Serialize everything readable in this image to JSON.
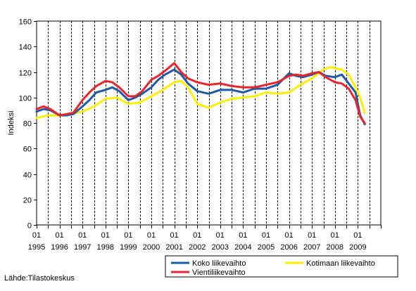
{
  "source": "Lähde:Tilastokeskus",
  "chart_data": {
    "type": "line",
    "title": "",
    "xlabel": "",
    "ylabel": "Indeksi",
    "ylim": [
      0,
      160
    ],
    "yticks": [
      0,
      20,
      40,
      60,
      80,
      100,
      120,
      140,
      160
    ],
    "xlim": [
      1995.0,
      2010.0
    ],
    "xticks": [
      {
        "month": "01",
        "year": "1995",
        "x": 1995
      },
      {
        "month": "01",
        "year": "1996",
        "x": 1996
      },
      {
        "month": "01",
        "year": "1997",
        "x": 1997
      },
      {
        "month": "01",
        "year": "1998",
        "x": 1998
      },
      {
        "month": "01",
        "year": "1999",
        "x": 1999
      },
      {
        "month": "01",
        "year": "2000",
        "x": 2000
      },
      {
        "month": "01",
        "year": "2001",
        "x": 2001
      },
      {
        "month": "01",
        "year": "2002",
        "x": 2002
      },
      {
        "month": "01",
        "year": "2003",
        "x": 2003
      },
      {
        "month": "01",
        "year": "2004",
        "x": 2004
      },
      {
        "month": "01",
        "year": "2005",
        "x": 2005
      },
      {
        "month": "01",
        "year": "2006",
        "x": 2006
      },
      {
        "month": "01",
        "year": "2007",
        "x": 2007
      },
      {
        "month": "01",
        "year": "2008",
        "x": 2008
      },
      {
        "month": "01",
        "year": "2009",
        "x": 2009
      }
    ],
    "grid": {
      "vertical": "dashed",
      "horizontal": false
    },
    "legend_position": "bottom",
    "series": [
      {
        "name": "Kotimaan liikevaihto",
        "color": "#ffee00",
        "x": [
          1995.0,
          1995.5,
          1996.0,
          1996.5,
          1997.0,
          1997.5,
          1998.0,
          1998.5,
          1999.0,
          1999.5,
          2000.0,
          2000.5,
          2001.0,
          2001.3,
          2001.6,
          2002.0,
          2002.5,
          2003.0,
          2003.5,
          2004.0,
          2004.5,
          2005.0,
          2005.5,
          2006.0,
          2006.5,
          2007.0,
          2007.5,
          2007.8,
          2008.0,
          2008.3,
          2008.6,
          2008.9,
          2009.1,
          2009.3
        ],
        "y": [
          84,
          86,
          86,
          87,
          89,
          93,
          99,
          100,
          95,
          96,
          101,
          106,
          112,
          113,
          108,
          95,
          92,
          96,
          99,
          100,
          101,
          104,
          103,
          104,
          110,
          115,
          122,
          124,
          123,
          122,
          118,
          108,
          100,
          88
        ]
      },
      {
        "name": "Koko liikevaihto",
        "color": "#1f5aa6",
        "x": [
          1995.0,
          1995.3,
          1995.6,
          1996.0,
          1996.3,
          1996.6,
          1997.0,
          1997.3,
          1997.6,
          1998.0,
          1998.3,
          1998.6,
          1999.0,
          1999.3,
          1999.6,
          2000.0,
          2000.3,
          2000.6,
          2001.0,
          2001.3,
          2001.6,
          2002.0,
          2002.5,
          2003.0,
          2003.5,
          2004.0,
          2004.5,
          2005.0,
          2005.5,
          2006.0,
          2006.3,
          2006.6,
          2007.0,
          2007.3,
          2007.6,
          2008.0,
          2008.3,
          2008.6,
          2008.9,
          2009.1,
          2009.3
        ],
        "y": [
          89,
          91,
          90,
          86,
          86,
          87,
          93,
          98,
          104,
          106,
          108,
          105,
          98,
          100,
          103,
          108,
          114,
          118,
          122,
          118,
          111,
          105,
          103,
          106,
          106,
          104,
          107,
          107,
          110,
          119,
          117,
          116,
          118,
          120,
          117,
          116,
          118,
          111,
          104,
          86,
          79
        ]
      },
      {
        "name": "Vientiliikevaihto",
        "color": "#e8252a",
        "x": [
          1995.0,
          1995.3,
          1995.6,
          1996.0,
          1996.3,
          1996.6,
          1997.0,
          1997.3,
          1997.6,
          1998.0,
          1998.3,
          1998.6,
          1999.0,
          1999.3,
          1999.6,
          2000.0,
          2000.3,
          2000.6,
          2001.0,
          2001.3,
          2001.6,
          2002.0,
          2002.5,
          2003.0,
          2003.5,
          2004.0,
          2004.5,
          2005.0,
          2005.5,
          2006.0,
          2006.3,
          2006.6,
          2007.0,
          2007.3,
          2007.6,
          2008.0,
          2008.3,
          2008.6,
          2008.9,
          2009.1,
          2009.3
        ],
        "y": [
          91,
          93,
          91,
          86,
          87,
          88,
          98,
          104,
          109,
          113,
          112,
          108,
          101,
          101,
          105,
          114,
          117,
          121,
          127,
          120,
          115,
          112,
          110,
          111,
          109,
          108,
          108,
          110,
          112,
          117,
          118,
          117,
          119,
          120,
          116,
          112,
          111,
          107,
          98,
          85,
          80
        ]
      }
    ]
  }
}
